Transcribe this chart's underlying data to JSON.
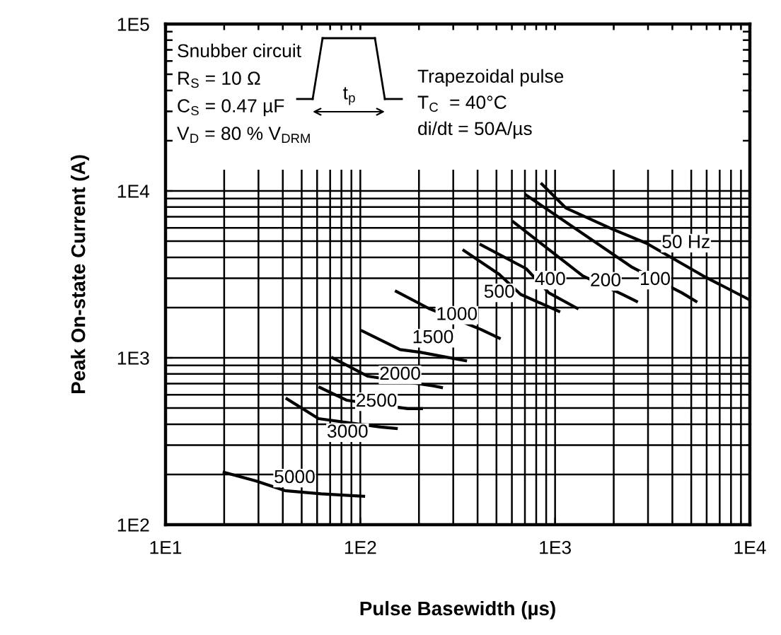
{
  "chart_data": {
    "type": "line",
    "xlabel": "Pulse Basewidth (µs)",
    "ylabel": "Peak On-state Current (A)",
    "log": "xy",
    "xlim": [
      10,
      10000
    ],
    "ylim": [
      100,
      100000
    ],
    "xticks": [
      {
        "value": 10,
        "label": "1E1"
      },
      {
        "value": 100,
        "label": "1E2"
      },
      {
        "value": 1000,
        "label": "1E3"
      },
      {
        "value": 10000,
        "label": "1E4"
      }
    ],
    "yticks": [
      {
        "value": 100,
        "label": "1E2"
      },
      {
        "value": 1000,
        "label": "1E3"
      },
      {
        "value": 10000,
        "label": "1E4"
      },
      {
        "value": 100000,
        "label": "1E5"
      }
    ],
    "grid": true,
    "legend": false,
    "marker": "none",
    "line_style": "solid",
    "annotations": [
      "Snubber circuit",
      "R$_{S}$ = 10 Ω",
      "C$_{S}$ = 0.47 µF",
      "V$_{D}$ = 80 % V$_{DRM}$",
      "Trapezoidal pulse",
      "T$_{C}$  = 40°C",
      "di/dt = 50A/µs",
      "t$_{p}$",
      {
        "text": "5000",
        "x": 46,
        "y": 190
      },
      {
        "text": "3000",
        "x": 86,
        "y": 356
      },
      {
        "text": "2500",
        "x": 121,
        "y": 545
      },
      {
        "text": "2000",
        "x": 160,
        "y": 790
      },
      {
        "text": "1500",
        "x": 236,
        "y": 1310
      },
      {
        "text": "1000",
        "x": 313,
        "y": 1800
      },
      {
        "text": "500",
        "x": 517,
        "y": 2450
      },
      {
        "text": "400",
        "x": 944,
        "y": 2920
      },
      {
        "text": "200",
        "x": 1816,
        "y": 2870
      },
      {
        "text": "100",
        "x": 3260,
        "y": 2920
      },
      {
        "text": "50 Hz",
        "x": 4700,
        "y": 4860
      }
    ],
    "series": [
      {
        "color": "#000000",
        "x": [
          20,
          29,
          41,
          63,
          104
        ],
        "values": [
          206,
          183,
          160,
          153,
          148
        ]
      },
      {
        "color": "#000000",
        "x": [
          42,
          61,
          127,
          153
        ],
        "values": [
          568,
          432,
          385,
          377
        ]
      },
      {
        "color": "#000000",
        "x": [
          62,
          85,
          175,
          206
        ],
        "values": [
          664,
          557,
          496,
          496
        ]
      },
      {
        "color": "#000000",
        "x": [
          72,
          109,
          240,
          261
        ],
        "values": [
          1000,
          776,
          677,
          664
        ]
      },
      {
        "color": "#000000",
        "x": [
          102,
          160,
          203,
          347
        ],
        "values": [
          1450,
          1120,
          1080,
          960
        ]
      },
      {
        "color": "#000000",
        "x": [
          153,
          224,
          416,
          517
        ],
        "values": [
          2500,
          1980,
          1480,
          1310
        ]
      },
      {
        "color": "#000000",
        "x": [
          340,
          517,
          665,
          1045
        ],
        "values": [
          4400,
          3160,
          2400,
          1900
        ]
      },
      {
        "color": "#000000",
        "x": [
          416,
          711,
          929,
          1298
        ],
        "values": [
          4760,
          3420,
          2450,
          1980
        ]
      },
      {
        "color": "#000000",
        "x": [
          611,
          1387,
          2218,
          2620
        ],
        "values": [
          6510,
          3100,
          2400,
          2180
        ]
      },
      {
        "color": "#000000",
        "x": [
          711,
          2494,
          4478,
          5290
        ],
        "values": [
          9440,
          3480,
          2450,
          2180
        ]
      },
      {
        "color": "#000000",
        "x": [
          855,
          1135,
          1972,
          2946,
          5750,
          10000
        ],
        "values": [
          11000,
          7910,
          5900,
          4860,
          3100,
          2220
        ]
      }
    ]
  }
}
